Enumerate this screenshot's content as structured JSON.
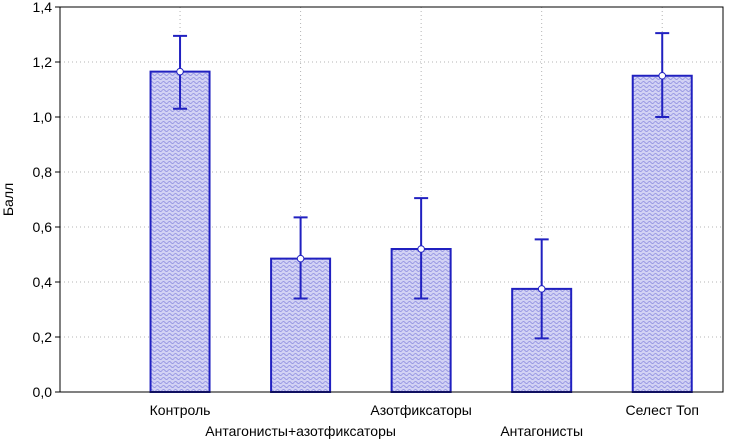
{
  "chart_data": {
    "type": "bar",
    "ylabel": "Балл",
    "categories": [
      "Контроль",
      "Антагонисты+азотфиксаторы",
      "Азотфиксаторы",
      "Антагонисты",
      "Селест Топ"
    ],
    "values": [
      1.165,
      0.485,
      0.52,
      0.375,
      1.15
    ],
    "error_low": [
      1.03,
      0.34,
      0.34,
      0.195,
      1.0
    ],
    "error_high": [
      1.295,
      0.635,
      0.705,
      0.555,
      1.305
    ],
    "ylim": [
      0,
      1.4
    ],
    "yticks": [
      {
        "value": 0.0,
        "label": "0,0"
      },
      {
        "value": 0.2,
        "label": "0,2"
      },
      {
        "value": 0.4,
        "label": "0,4"
      },
      {
        "value": 0.6,
        "label": "0,6"
      },
      {
        "value": 0.8,
        "label": "0,8"
      },
      {
        "value": 1.0,
        "label": "1,0"
      },
      {
        "value": 1.2,
        "label": "1,2"
      },
      {
        "value": 1.4,
        "label": "1,4"
      }
    ],
    "grid": true,
    "colors": {
      "bar_fill": "#ccccf2",
      "bar_stroke": "#2020c0",
      "error_bar": "#2020c0"
    }
  }
}
